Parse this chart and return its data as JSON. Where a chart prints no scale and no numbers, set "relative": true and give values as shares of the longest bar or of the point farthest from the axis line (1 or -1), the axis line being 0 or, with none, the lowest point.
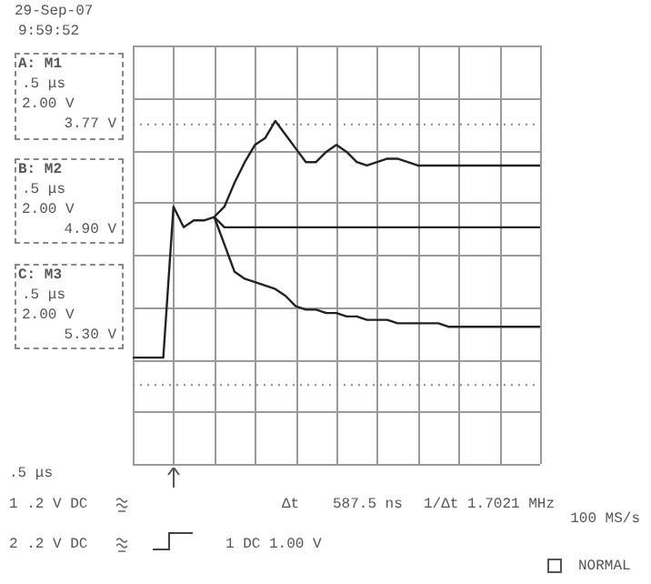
{
  "chart_data": {
    "type": "line",
    "relative": true,
    "grid": true,
    "legend": false,
    "marker": "none",
    "line_style": "solid",
    "categories": [
      null,
      null,
      null,
      null,
      null,
      null,
      null,
      null,
      null,
      null,
      null,
      null,
      null,
      null,
      null,
      null,
      null,
      null,
      null,
      null,
      null,
      null,
      null,
      null,
      null,
      null,
      null,
      null,
      null,
      null,
      null,
      null,
      null,
      null,
      null,
      null,
      null,
      null,
      null,
      null,
      null
    ],
    "series": [
      {
        "color": "#222222",
        "values": [
          0.31,
          0.31,
          0.31,
          0.31,
          0.75,
          0.69,
          0.71,
          0.71,
          0.72,
          0.75,
          0.82,
          0.88,
          0.93,
          0.95,
          1,
          0.96,
          0.92,
          0.88,
          0.88,
          0.91,
          0.93,
          0.91,
          0.88,
          0.87,
          0.88,
          0.89,
          0.89,
          0.88,
          0.87,
          0.87,
          0.87,
          0.87,
          0.87,
          0.87,
          0.87,
          0.87,
          0.87,
          0.87,
          0.87,
          0.87,
          0.87
        ]
      },
      {
        "color": "#222222",
        "values": [
          null,
          null,
          null,
          null,
          null,
          null,
          null,
          null,
          0.72,
          0.69,
          0.69,
          0.69,
          0.69,
          0.69,
          0.69,
          0.69,
          0.69,
          0.69,
          0.69,
          0.69,
          0.69,
          0.69,
          0.69,
          0.69,
          0.69,
          0.69,
          0.69,
          0.69,
          0.69,
          0.69,
          0.69,
          0.69,
          0.69,
          0.69,
          0.69,
          0.69,
          0.69,
          0.69,
          0.69,
          0.69,
          0.69
        ]
      },
      {
        "color": "#222222",
        "values": [
          null,
          null,
          null,
          null,
          null,
          null,
          null,
          null,
          0.72,
          0.64,
          0.56,
          0.54,
          0.53,
          0.52,
          0.51,
          0.49,
          0.46,
          0.45,
          0.45,
          0.44,
          0.44,
          0.43,
          0.43,
          0.42,
          0.42,
          0.42,
          0.41,
          0.41,
          0.41,
          0.41,
          0.41,
          0.4,
          0.4,
          0.4,
          0.4,
          0.4,
          0.4,
          0.4,
          0.4,
          0.4,
          0.4
        ]
      }
    ],
    "ref_lines": [
      {
        "axis": "y",
        "value": 0.99,
        "line_style": "dotted",
        "color": "#888888"
      },
      {
        "axis": "y",
        "value": 0.23,
        "line_style": "dotted",
        "color": "#888888"
      }
    ],
    "annotations": [
      "29-Sep-07",
      "9:59:52",
      "A: M1",
      ".5 μs",
      "2.00 V",
      "3.77 V",
      "B: M2",
      ".5 μs",
      "2.00 V",
      "4.90 V",
      "C: M3",
      ".5 μs",
      "2.00 V",
      "5.30 V",
      ".5 μs",
      "1 .2 V DC",
      "Δt",
      "587.5 ns",
      "1/Δt 1.7021 MHz",
      "100 MS/s",
      "2 .2 V DC",
      "1 DC 1.00 V",
      "NORMAL"
    ]
  }
}
